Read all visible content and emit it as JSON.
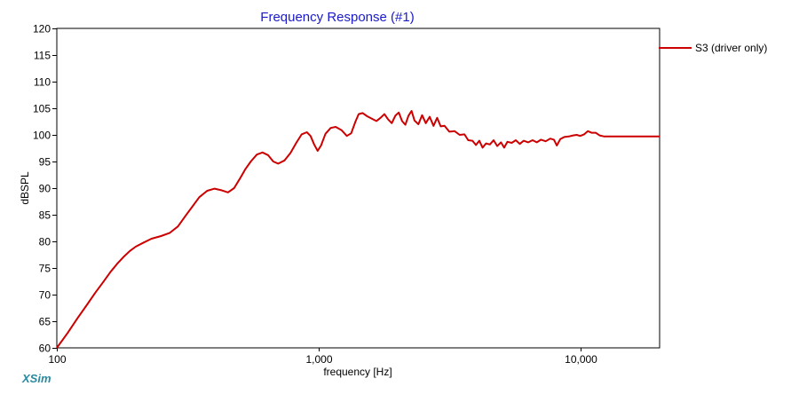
{
  "app": {
    "brand": "XSim"
  },
  "chart_data": {
    "type": "line",
    "title": "Frequency Response (#1)",
    "xlabel": "frequency [Hz]",
    "ylabel": "dBSPL",
    "xscale": "log",
    "xlim": [
      100,
      20000
    ],
    "ylim": [
      60,
      120
    ],
    "y_ticks": [
      60,
      65,
      70,
      75,
      80,
      85,
      90,
      95,
      100,
      105,
      110,
      115,
      120
    ],
    "x_tick_labels": [
      {
        "value": 100,
        "label": "100"
      },
      {
        "value": 1000,
        "label": "1,000"
      },
      {
        "value": 10000,
        "label": "10,000"
      }
    ],
    "x_gridlines": [
      200,
      300,
      400,
      500,
      600,
      700,
      800,
      900,
      1000,
      2000,
      3000,
      4000,
      5000,
      6000,
      7000,
      8000,
      9000,
      10000
    ],
    "grid": true,
    "legend_position": "top-right",
    "series": [
      {
        "name": "S3 (driver only)",
        "color": "#cc0000",
        "points": [
          [
            100,
            60
          ],
          [
            110,
            62.8
          ],
          [
            120,
            65.6
          ],
          [
            130,
            68.0
          ],
          [
            140,
            70.3
          ],
          [
            150,
            72.3
          ],
          [
            160,
            74.2
          ],
          [
            170,
            75.8
          ],
          [
            180,
            77.1
          ],
          [
            190,
            78.2
          ],
          [
            200,
            79.0
          ],
          [
            215,
            79.8
          ],
          [
            230,
            80.5
          ],
          [
            250,
            81.0
          ],
          [
            270,
            81.6
          ],
          [
            290,
            82.8
          ],
          [
            310,
            84.8
          ],
          [
            330,
            86.6
          ],
          [
            350,
            88.3
          ],
          [
            375,
            89.5
          ],
          [
            400,
            89.9
          ],
          [
            425,
            89.6
          ],
          [
            450,
            89.2
          ],
          [
            475,
            90.0
          ],
          [
            500,
            91.8
          ],
          [
            525,
            93.6
          ],
          [
            550,
            95.0
          ],
          [
            580,
            96.3
          ],
          [
            610,
            96.7
          ],
          [
            640,
            96.2
          ],
          [
            670,
            95.0
          ],
          [
            700,
            94.6
          ],
          [
            740,
            95.2
          ],
          [
            780,
            96.6
          ],
          [
            820,
            98.5
          ],
          [
            860,
            100.1
          ],
          [
            900,
            100.5
          ],
          [
            930,
            99.8
          ],
          [
            960,
            98.2
          ],
          [
            990,
            97.0
          ],
          [
            1020,
            98.0
          ],
          [
            1060,
            100.2
          ],
          [
            1110,
            101.3
          ],
          [
            1160,
            101.5
          ],
          [
            1220,
            100.9
          ],
          [
            1280,
            99.8
          ],
          [
            1330,
            100.3
          ],
          [
            1380,
            102.5
          ],
          [
            1420,
            103.9
          ],
          [
            1470,
            104.1
          ],
          [
            1530,
            103.5
          ],
          [
            1600,
            103.0
          ],
          [
            1660,
            102.6
          ],
          [
            1720,
            103.2
          ],
          [
            1780,
            103.9
          ],
          [
            1840,
            102.9
          ],
          [
            1900,
            102.2
          ],
          [
            1960,
            103.6
          ],
          [
            2020,
            104.2
          ],
          [
            2080,
            102.6
          ],
          [
            2140,
            101.9
          ],
          [
            2200,
            103.6
          ],
          [
            2260,
            104.5
          ],
          [
            2320,
            102.7
          ],
          [
            2400,
            102.0
          ],
          [
            2480,
            103.7
          ],
          [
            2560,
            102.2
          ],
          [
            2650,
            103.4
          ],
          [
            2740,
            101.7
          ],
          [
            2830,
            103.2
          ],
          [
            2920,
            101.6
          ],
          [
            3020,
            101.7
          ],
          [
            3150,
            100.6
          ],
          [
            3300,
            100.7
          ],
          [
            3450,
            100.0
          ],
          [
            3600,
            100.1
          ],
          [
            3720,
            99.0
          ],
          [
            3860,
            98.9
          ],
          [
            3980,
            98.1
          ],
          [
            4100,
            98.9
          ],
          [
            4220,
            97.6
          ],
          [
            4350,
            98.4
          ],
          [
            4500,
            98.2
          ],
          [
            4650,
            99.0
          ],
          [
            4800,
            97.9
          ],
          [
            4960,
            98.6
          ],
          [
            5100,
            97.6
          ],
          [
            5250,
            98.7
          ],
          [
            5450,
            98.5
          ],
          [
            5650,
            99.0
          ],
          [
            5850,
            98.3
          ],
          [
            6050,
            98.9
          ],
          [
            6300,
            98.6
          ],
          [
            6550,
            99.0
          ],
          [
            6800,
            98.6
          ],
          [
            7050,
            99.1
          ],
          [
            7350,
            98.8
          ],
          [
            7650,
            99.3
          ],
          [
            7900,
            99.1
          ],
          [
            8100,
            98.0
          ],
          [
            8350,
            99.2
          ],
          [
            8650,
            99.6
          ],
          [
            9000,
            99.7
          ],
          [
            9350,
            99.9
          ],
          [
            9650,
            100.0
          ],
          [
            9950,
            99.8
          ],
          [
            10300,
            100.1
          ],
          [
            10650,
            100.7
          ],
          [
            11000,
            100.4
          ],
          [
            11400,
            100.4
          ],
          [
            11800,
            99.9
          ],
          [
            12300,
            99.7
          ],
          [
            13000,
            99.7
          ],
          [
            15000,
            99.7
          ],
          [
            17500,
            99.7
          ],
          [
            20000,
            99.7
          ]
        ]
      }
    ]
  }
}
